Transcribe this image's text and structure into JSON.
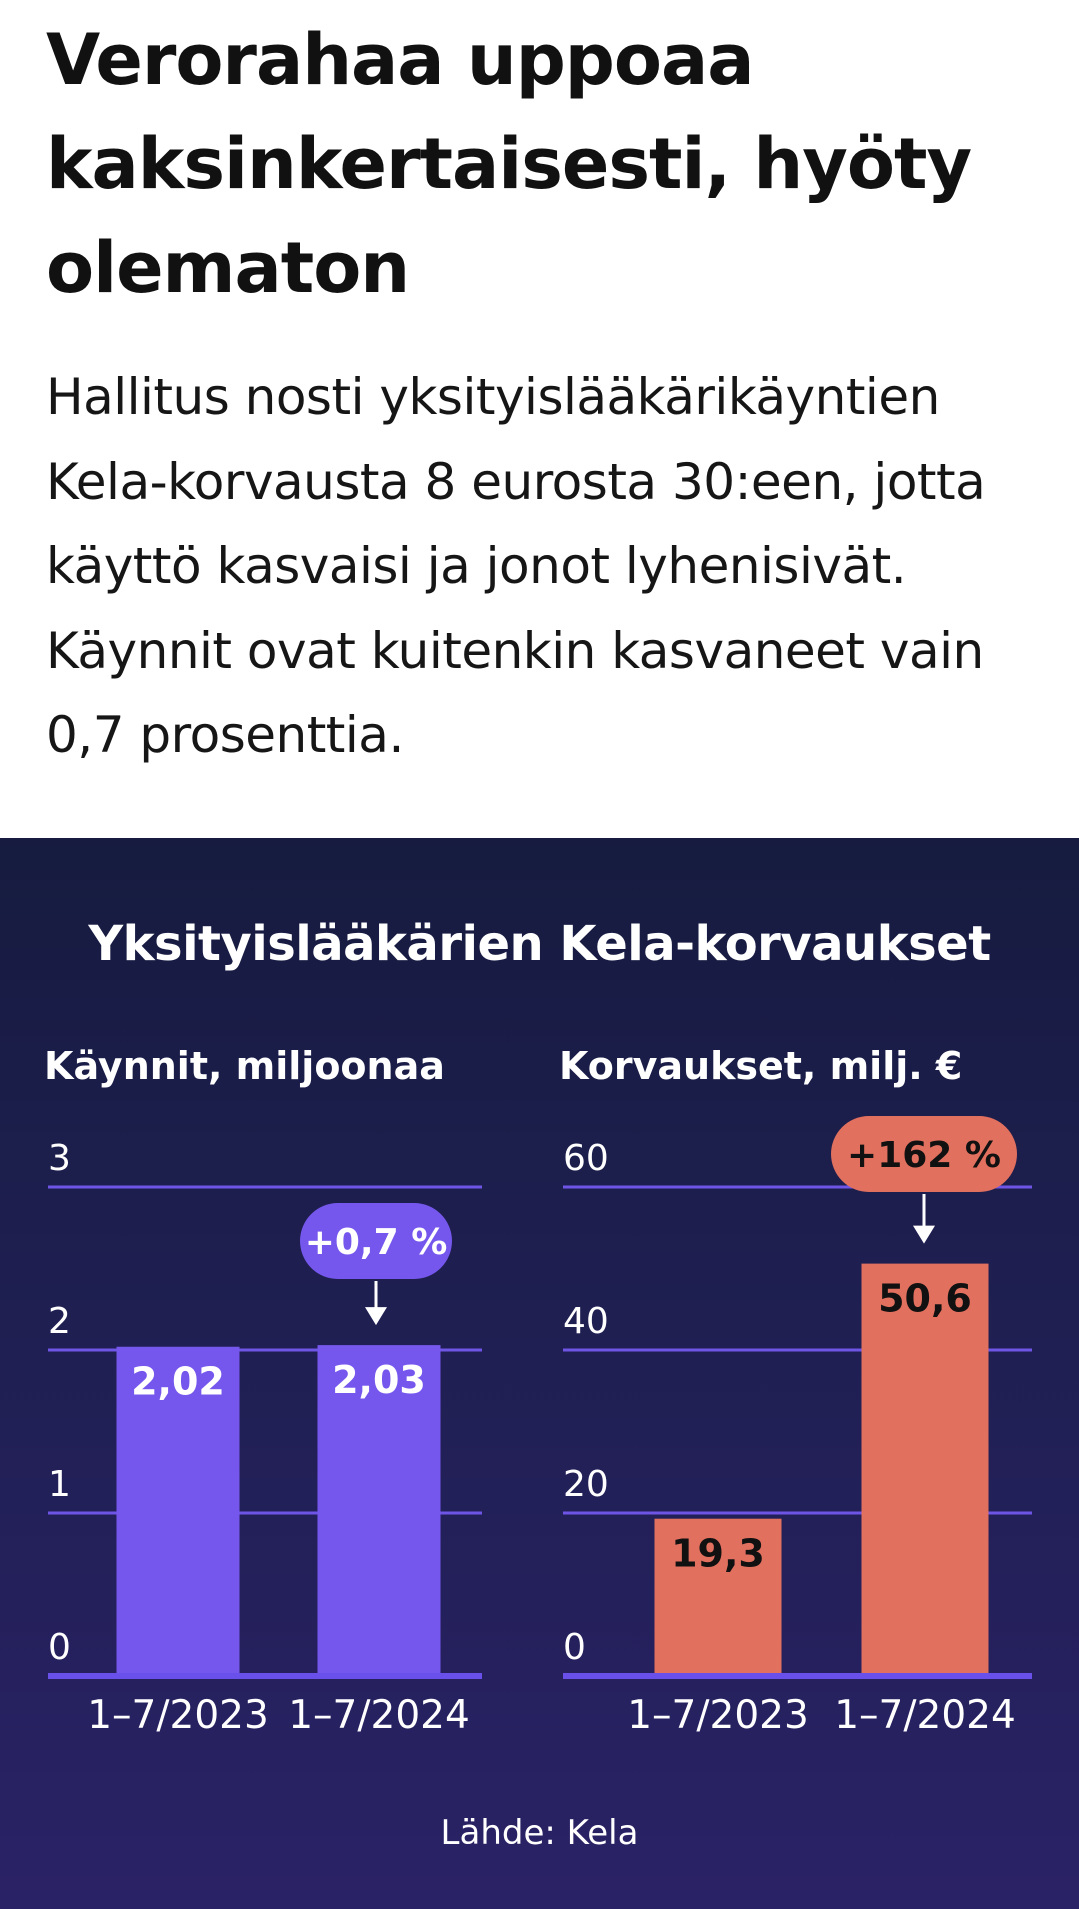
{
  "article": {
    "headline": "Verorahaa uppoaa kaksinkertaisesti, hyöty olematon",
    "lead": "Hallitus nosti yksityislääkärikäyntien Kela-korvausta 8 eurosta 30:een, jotta käyttö kasvaisi ja jonot lyhenisivät. Käynnit ovat kuitenkin kasvaneet vain 0,7 prosenttia."
  },
  "graphic": {
    "title": "Yksityislääkärien Kela-korvaukset",
    "source": "Lähde: Kela"
  },
  "chart_data": [
    {
      "type": "bar",
      "title": "Käynnit, miljoonaa",
      "categories": [
        "1–7/2023",
        "1–7/2024"
      ],
      "values": [
        2.02,
        2.03
      ],
      "value_labels": [
        "2,02",
        "2,03"
      ],
      "yticks": [
        "0",
        "1",
        "2",
        "3"
      ],
      "ylim": [
        0,
        3
      ],
      "annotation": "+0,7 %",
      "color": "#7657ee",
      "value_label_color": "#ffffff",
      "grid": true
    },
    {
      "type": "bar",
      "title": "Korvaukset, milj. €",
      "categories": [
        "1–7/2023",
        "1–7/2024"
      ],
      "values": [
        19.3,
        50.6
      ],
      "value_labels": [
        "19,3",
        "50,6"
      ],
      "yticks": [
        "0",
        "20",
        "40",
        "60"
      ],
      "ylim": [
        0,
        60
      ],
      "annotation": "+162 %",
      "color": "#e2705f",
      "value_label_color": "#111111",
      "grid": true
    }
  ]
}
